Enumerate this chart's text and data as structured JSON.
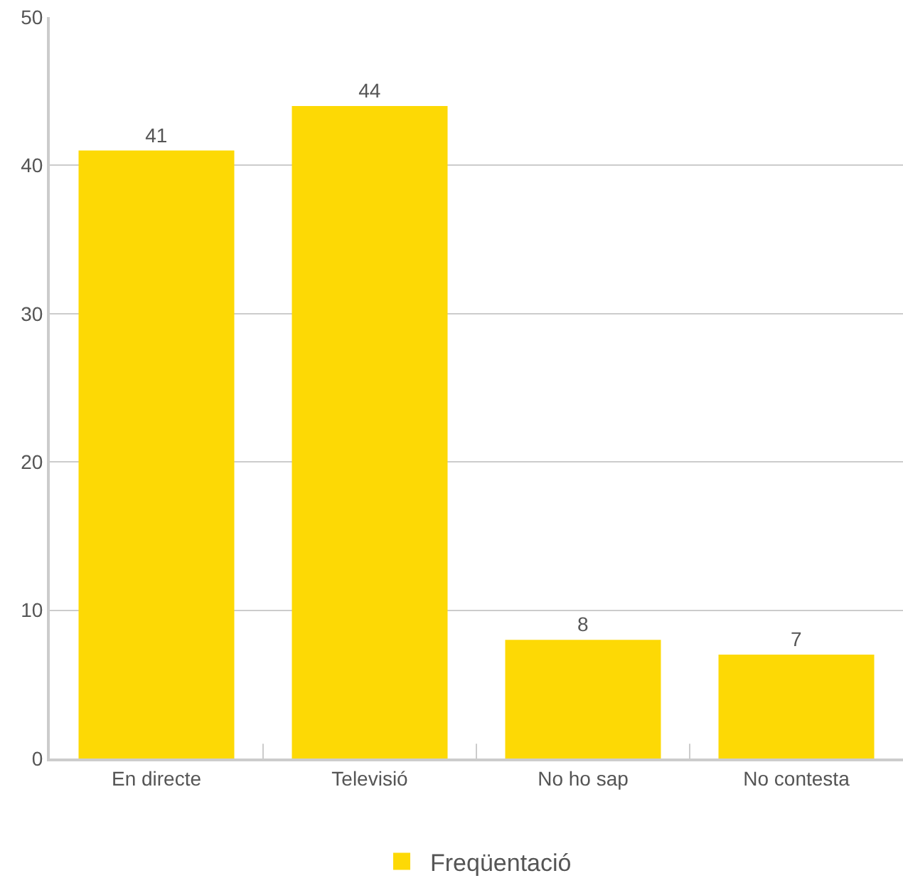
{
  "chart_data": {
    "type": "bar",
    "categories": [
      "En directe",
      "Televisió",
      "No ho sap",
      "No contesta"
    ],
    "series": [
      {
        "name": "Freqüentació",
        "color": "#fdd905",
        "values": [
          41,
          44,
          8,
          7
        ]
      }
    ],
    "ylim": [
      0,
      50
    ],
    "yticks": [
      0,
      10,
      20,
      30,
      40,
      50
    ],
    "grid": "y",
    "legend": "bottom",
    "data_labels": true
  }
}
